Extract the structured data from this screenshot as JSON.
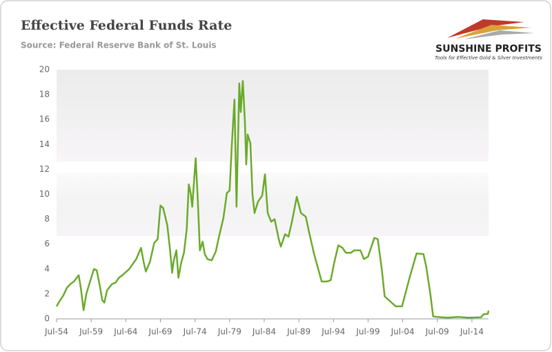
{
  "logo": {
    "name": "SUNSHINE PROFITS",
    "tagline": "Tools for Effective Gold & Silver Investments"
  },
  "chart_data": {
    "type": "line",
    "title": "Effective Federal Funds Rate",
    "subtitle": "Source: Federal Reserve Bank of St. Louis",
    "x": [
      1954.5,
      1954.8,
      1955.5,
      1956,
      1956.5,
      1957,
      1957.7,
      1958,
      1958.4,
      1958.8,
      1959.5,
      1959.9,
      1960.3,
      1960.8,
      1961.1,
      1961.4,
      1961.8,
      1962.5,
      1963,
      1963.5,
      1964,
      1965,
      1966,
      1966.7,
      1967.1,
      1967.4,
      1968,
      1968.6,
      1969.1,
      1969.5,
      1969.9,
      1970.5,
      1970.9,
      1971.2,
      1971.4,
      1971.8,
      1972.1,
      1972.5,
      1972.9,
      1973.3,
      1973.6,
      1973.9,
      1974.1,
      1974.6,
      1974.9,
      1975.2,
      1975.6,
      1975.9,
      1976.3,
      1976.9,
      1977.5,
      1978,
      1978.6,
      1979.1,
      1979.5,
      1979.8,
      1980.2,
      1980.5,
      1980.9,
      1981.1,
      1981.4,
      1981.7,
      1981.9,
      1982.1,
      1982.5,
      1982.8,
      1983.1,
      1983.6,
      1984.2,
      1984.6,
      1985,
      1985.5,
      1986,
      1986.6,
      1986.9,
      1987.5,
      1988,
      1988.5,
      1989.2,
      1989.8,
      1990.5,
      1991,
      1991.7,
      1992.3,
      1992.8,
      1993.5,
      1994.1,
      1994.6,
      1995.2,
      1995.8,
      1996.3,
      1997,
      1997.5,
      1998.4,
      1998.9,
      1999.5,
      2000.4,
      2000.9,
      2001.5,
      2001.9,
      2002.9,
      2003.5,
      2004.4,
      2005.5,
      2006.5,
      2007.5,
      2007.9,
      2008.5,
      2008.9,
      2009.5,
      2011,
      2012.5,
      2014,
      2015.8,
      2016.2,
      2016.8,
      2016.9
    ],
    "series": [
      {
        "name": "Effective Federal Funds Rate",
        "color": "#6aaa2a",
        "values": [
          1.0,
          1.3,
          1.9,
          2.5,
          2.8,
          3.0,
          3.5,
          2.5,
          0.7,
          2.0,
          3.3,
          4.0,
          3.9,
          2.5,
          1.5,
          1.3,
          2.3,
          2.8,
          2.9,
          3.3,
          3.5,
          4.0,
          4.8,
          5.7,
          4.5,
          3.8,
          4.6,
          6.1,
          6.4,
          9.1,
          8.9,
          7.5,
          5.5,
          3.7,
          4.6,
          5.5,
          3.3,
          4.5,
          5.3,
          7.2,
          10.8,
          10.0,
          9.0,
          12.9,
          9.5,
          5.5,
          6.2,
          5.2,
          4.8,
          4.7,
          5.4,
          6.7,
          8.1,
          10.1,
          10.3,
          13.8,
          17.6,
          9.0,
          18.9,
          16.6,
          19.1,
          15.9,
          12.4,
          14.8,
          14.1,
          10.0,
          8.5,
          9.4,
          9.9,
          11.6,
          8.5,
          7.8,
          8.0,
          6.4,
          5.8,
          6.8,
          6.6,
          7.8,
          9.8,
          8.5,
          8.2,
          6.9,
          5.2,
          4.0,
          3.0,
          3.0,
          3.1,
          4.5,
          5.9,
          5.7,
          5.3,
          5.3,
          5.5,
          5.5,
          4.8,
          5.0,
          6.5,
          6.4,
          3.9,
          1.8,
          1.3,
          1.0,
          1.0,
          3.3,
          5.25,
          5.2,
          4.2,
          2.0,
          0.2,
          0.15,
          0.1,
          0.15,
          0.1,
          0.13,
          0.37,
          0.4,
          0.66
        ]
      }
    ],
    "xlim": [
      1954.5,
      2016.9
    ],
    "xticks": [
      {
        "value": 1954.5,
        "label": "Jul-54"
      },
      {
        "value": 1959.5,
        "label": "Jul-59"
      },
      {
        "value": 1964.5,
        "label": "Jul-64"
      },
      {
        "value": 1969.5,
        "label": "Jul-69"
      },
      {
        "value": 1974.5,
        "label": "Jul-74"
      },
      {
        "value": 1979.5,
        "label": "Jul-79"
      },
      {
        "value": 1984.5,
        "label": "Jul-84"
      },
      {
        "value": 1989.5,
        "label": "Jul-89"
      },
      {
        "value": 1994.5,
        "label": "Jul-94"
      },
      {
        "value": 1999.5,
        "label": "Jul-99"
      },
      {
        "value": 2004.5,
        "label": "Jul-04"
      },
      {
        "value": 2009.5,
        "label": "Jul-09"
      },
      {
        "value": 2014.5,
        "label": "Jul-14"
      }
    ],
    "ylim": [
      0,
      20
    ],
    "yticks": [
      0,
      2,
      4,
      6,
      8,
      10,
      12,
      14,
      16,
      18,
      20
    ],
    "grid": false
  }
}
